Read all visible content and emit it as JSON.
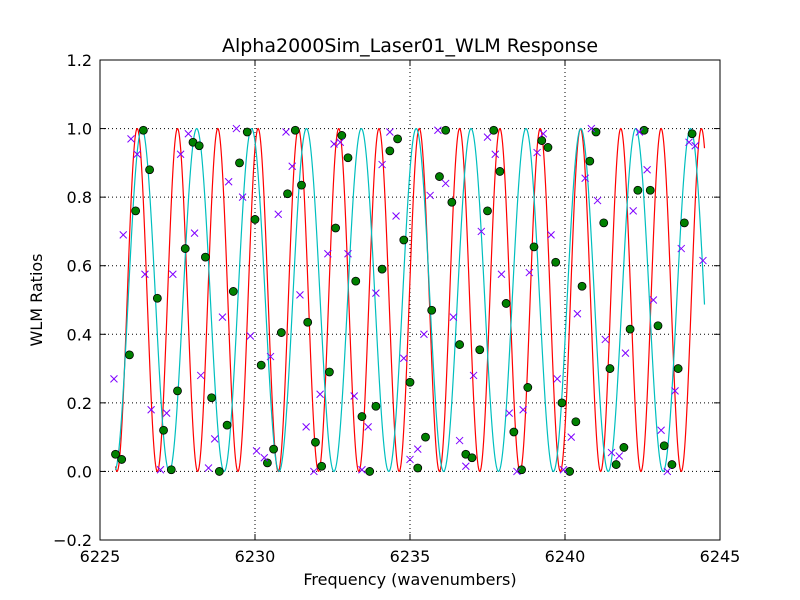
{
  "chart_data": {
    "type": "line",
    "title": "Alpha2000Sim_Laser01_WLM Response",
    "xlabel": "Frequency (wavenumbers)",
    "ylabel": "WLM Ratios",
    "xlim": [
      6225,
      6245
    ],
    "ylim": [
      -0.2,
      1.2
    ],
    "xticks": [
      6225,
      6230,
      6235,
      6240,
      6245
    ],
    "xtick_labels": [
      "6225",
      "6230",
      "6235",
      "6240",
      "6245"
    ],
    "yticks": [
      -0.2,
      0.0,
      0.2,
      0.4,
      0.6,
      0.8,
      1.0,
      1.2
    ],
    "ytick_labels": [
      "−0.2",
      "0.0",
      "0.2",
      "0.4",
      "0.6",
      "0.8",
      "1.0",
      "1.2"
    ],
    "grid": true,
    "legend": "none",
    "colors": {
      "red_curve": "#ff0000",
      "cyan_curve": "#00bfbf",
      "circle_fill": "#008000",
      "x_marker": "#7f00ff",
      "grid": "#000000"
    },
    "series": [
      {
        "kind": "curve",
        "color_key": "red_curve",
        "x_range": [
          6225.5,
          6244.5
        ],
        "peak_x": [
          6226.2,
          6227.5,
          6228.8,
          6230.1,
          6231.4,
          6232.7,
          6234.0,
          6235.3,
          6236.6,
          6237.9,
          6239.2,
          6240.5,
          6241.8,
          6243.1,
          6244.4
        ],
        "period": 1.3,
        "amplitude": [
          0.0,
          1.0
        ]
      },
      {
        "kind": "curve",
        "color_key": "cyan_curve",
        "x_range": [
          6225.5,
          6244.5
        ],
        "peak_x": [
          6226.35,
          6228.12,
          6229.89,
          6231.66,
          6233.43,
          6235.2,
          6236.97,
          6238.74,
          6240.51,
          6242.28,
          6244.05
        ],
        "period": 1.77,
        "amplitude": [
          0.0,
          1.0
        ]
      },
      {
        "kind": "markers",
        "marker": "circle",
        "color_key": "circle_fill",
        "points": [
          [
            6225.5,
            0.05
          ],
          [
            6225.7,
            0.035
          ],
          [
            6225.95,
            0.34
          ],
          [
            6226.15,
            0.76
          ],
          [
            6226.4,
            0.995
          ],
          [
            6226.6,
            0.88
          ],
          [
            6226.85,
            0.505
          ],
          [
            6227.05,
            0.12
          ],
          [
            6227.3,
            0.005
          ],
          [
            6227.5,
            0.235
          ],
          [
            6227.75,
            0.65
          ],
          [
            6228.0,
            0.96
          ],
          [
            6228.2,
            0.95
          ],
          [
            6228.4,
            0.625
          ],
          [
            6228.6,
            0.215
          ],
          [
            6228.85,
            0.0
          ],
          [
            6229.1,
            0.135
          ],
          [
            6229.3,
            0.525
          ],
          [
            6229.5,
            0.9
          ],
          [
            6229.75,
            0.99
          ],
          [
            6230.0,
            0.735
          ],
          [
            6230.2,
            0.31
          ],
          [
            6230.4,
            0.025
          ],
          [
            6230.6,
            0.065
          ],
          [
            6230.85,
            0.405
          ],
          [
            6231.05,
            0.81
          ],
          [
            6231.3,
            0.995
          ],
          [
            6231.5,
            0.835
          ],
          [
            6231.7,
            0.435
          ],
          [
            6231.95,
            0.085
          ],
          [
            6232.15,
            0.015
          ],
          [
            6232.4,
            0.29
          ],
          [
            6232.6,
            0.71
          ],
          [
            6232.8,
            0.98
          ],
          [
            6233.0,
            0.915
          ],
          [
            6233.25,
            0.555
          ],
          [
            6233.45,
            0.16
          ],
          [
            6233.7,
            0.0
          ],
          [
            6233.9,
            0.19
          ],
          [
            6234.1,
            0.59
          ],
          [
            6234.35,
            0.935
          ],
          [
            6234.6,
            0.97
          ],
          [
            6234.8,
            0.675
          ],
          [
            6235.0,
            0.26
          ],
          [
            6235.25,
            0.01
          ],
          [
            6235.5,
            0.1
          ],
          [
            6235.7,
            0.47
          ],
          [
            6235.95,
            0.86
          ],
          [
            6236.15,
            0.995
          ],
          [
            6236.35,
            0.785
          ],
          [
            6236.6,
            0.37
          ],
          [
            6236.8,
            0.05
          ],
          [
            6237.0,
            0.04
          ],
          [
            6237.25,
            0.355
          ],
          [
            6237.5,
            0.76
          ],
          [
            6237.7,
            0.995
          ],
          [
            6237.9,
            0.875
          ],
          [
            6238.1,
            0.49
          ],
          [
            6238.35,
            0.115
          ],
          [
            6238.6,
            0.005
          ],
          [
            6238.8,
            0.245
          ],
          [
            6239.0,
            0.655
          ],
          [
            6239.25,
            0.965
          ],
          [
            6239.45,
            0.945
          ],
          [
            6239.7,
            0.61
          ],
          [
            6239.9,
            0.2
          ],
          [
            6240.15,
            0.0
          ],
          [
            6240.35,
            0.145
          ],
          [
            6240.55,
            0.54
          ],
          [
            6240.8,
            0.905
          ],
          [
            6241.0,
            0.99
          ],
          [
            6241.25,
            0.725
          ],
          [
            6241.45,
            0.3
          ],
          [
            6241.65,
            0.02
          ],
          [
            6241.9,
            0.07
          ],
          [
            6242.1,
            0.415
          ],
          [
            6242.35,
            0.82
          ],
          [
            6242.55,
            0.995
          ],
          [
            6242.75,
            0.82
          ],
          [
            6243.0,
            0.425
          ],
          [
            6243.2,
            0.075
          ],
          [
            6243.45,
            0.02
          ],
          [
            6243.65,
            0.3
          ],
          [
            6243.85,
            0.725
          ],
          [
            6244.1,
            0.985
          ]
        ]
      },
      {
        "kind": "markers",
        "marker": "x",
        "color_key": "x_marker",
        "points": [
          [
            6225.45,
            0.27
          ],
          [
            6225.75,
            0.69
          ],
          [
            6226.0,
            0.97
          ],
          [
            6226.2,
            0.925
          ],
          [
            6226.45,
            0.575
          ],
          [
            6226.65,
            0.18
          ],
          [
            6226.95,
            0.005
          ],
          [
            6227.15,
            0.17
          ],
          [
            6227.35,
            0.575
          ],
          [
            6227.6,
            0.925
          ],
          [
            6227.85,
            0.985
          ],
          [
            6228.05,
            0.695
          ],
          [
            6228.25,
            0.28
          ],
          [
            6228.5,
            0.01
          ],
          [
            6228.7,
            0.095
          ],
          [
            6228.95,
            0.45
          ],
          [
            6229.15,
            0.845
          ],
          [
            6229.4,
            1.0
          ],
          [
            6229.6,
            0.8
          ],
          [
            6229.85,
            0.395
          ],
          [
            6230.05,
            0.06
          ],
          [
            6230.3,
            0.04
          ],
          [
            6230.5,
            0.335
          ],
          [
            6230.75,
            0.75
          ],
          [
            6231.0,
            0.99
          ],
          [
            6231.2,
            0.89
          ],
          [
            6231.45,
            0.515
          ],
          [
            6231.65,
            0.13
          ],
          [
            6231.9,
            0.0
          ],
          [
            6232.1,
            0.225
          ],
          [
            6232.35,
            0.635
          ],
          [
            6232.55,
            0.955
          ],
          [
            6232.75,
            0.96
          ],
          [
            6233.0,
            0.635
          ],
          [
            6233.2,
            0.22
          ],
          [
            6233.45,
            0.005
          ],
          [
            6233.65,
            0.13
          ],
          [
            6233.9,
            0.52
          ],
          [
            6234.1,
            0.895
          ],
          [
            6234.35,
            0.99
          ],
          [
            6234.55,
            0.745
          ],
          [
            6234.8,
            0.33
          ],
          [
            6235.0,
            0.035
          ],
          [
            6235.25,
            0.065
          ],
          [
            6235.45,
            0.4
          ],
          [
            6235.65,
            0.805
          ],
          [
            6235.9,
            0.995
          ],
          [
            6236.15,
            0.84
          ],
          [
            6236.4,
            0.45
          ],
          [
            6236.6,
            0.09
          ],
          [
            6236.8,
            0.015
          ],
          [
            6237.05,
            0.28
          ],
          [
            6237.3,
            0.7
          ],
          [
            6237.5,
            0.975
          ],
          [
            6237.75,
            0.925
          ],
          [
            6237.95,
            0.575
          ],
          [
            6238.2,
            0.17
          ],
          [
            6238.45,
            0.0
          ],
          [
            6238.65,
            0.18
          ],
          [
            6238.85,
            0.58
          ],
          [
            6239.1,
            0.93
          ],
          [
            6239.3,
            0.985
          ],
          [
            6239.55,
            0.69
          ],
          [
            6239.75,
            0.27
          ],
          [
            6239.95,
            0.005
          ],
          [
            6240.2,
            0.1
          ],
          [
            6240.4,
            0.46
          ],
          [
            6240.65,
            0.855
          ],
          [
            6240.85,
            1.0
          ],
          [
            6241.05,
            0.79
          ],
          [
            6241.3,
            0.385
          ],
          [
            6241.5,
            0.055
          ],
          [
            6241.75,
            0.045
          ],
          [
            6241.95,
            0.345
          ],
          [
            6242.2,
            0.76
          ],
          [
            6242.4,
            0.99
          ],
          [
            6242.65,
            0.88
          ],
          [
            6242.85,
            0.5
          ],
          [
            6243.1,
            0.12
          ],
          [
            6243.3,
            0.0
          ],
          [
            6243.55,
            0.235
          ],
          [
            6243.75,
            0.65
          ],
          [
            6244.0,
            0.96
          ],
          [
            6244.2,
            0.95
          ],
          [
            6244.45,
            0.615
          ]
        ]
      }
    ]
  }
}
